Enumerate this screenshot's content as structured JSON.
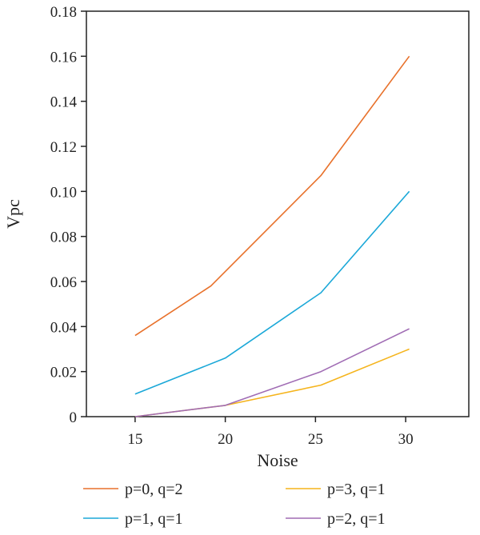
{
  "chart_data": {
    "type": "line",
    "xlabel": "Noise",
    "ylabel": "Vpc",
    "xlim": [
      12.3,
      33.5
    ],
    "ylim": [
      0,
      0.18
    ],
    "x_ticks": [
      "15",
      "20",
      "25",
      "30"
    ],
    "x_tick_values": [
      15,
      20,
      25,
      30
    ],
    "y_ticks": [
      "0",
      "0.02",
      "0.04",
      "0.06",
      "0.08",
      "0.10",
      "0.12",
      "0.14",
      "0.16",
      "0.18"
    ],
    "y_tick_values": [
      0,
      0.02,
      0.04,
      0.06,
      0.08,
      0.1,
      0.12,
      0.14,
      0.16,
      0.18
    ],
    "grid": false,
    "legend_position": "bottom",
    "series": [
      {
        "name": "p=0, q=2",
        "color": "#E8712B",
        "x": [
          15,
          19.2,
          25.3,
          30.2
        ],
        "y": [
          0.036,
          0.058,
          0.107,
          0.16
        ]
      },
      {
        "name": "p=1, q=1",
        "color": "#1BA8D8",
        "x": [
          15,
          20,
          25.3,
          30.2
        ],
        "y": [
          0.01,
          0.026,
          0.055,
          0.1
        ]
      },
      {
        "name": "p=3, q=1",
        "color": "#F5B41C",
        "x": [
          15,
          20,
          25.3,
          30.2
        ],
        "y": [
          0.0,
          0.005,
          0.014,
          0.03
        ]
      },
      {
        "name": "p=2, q=1",
        "color": "#A06CB4",
        "x": [
          15,
          20,
          25.3,
          30.2
        ],
        "y": [
          0.0,
          0.005,
          0.02,
          0.039
        ]
      }
    ]
  }
}
